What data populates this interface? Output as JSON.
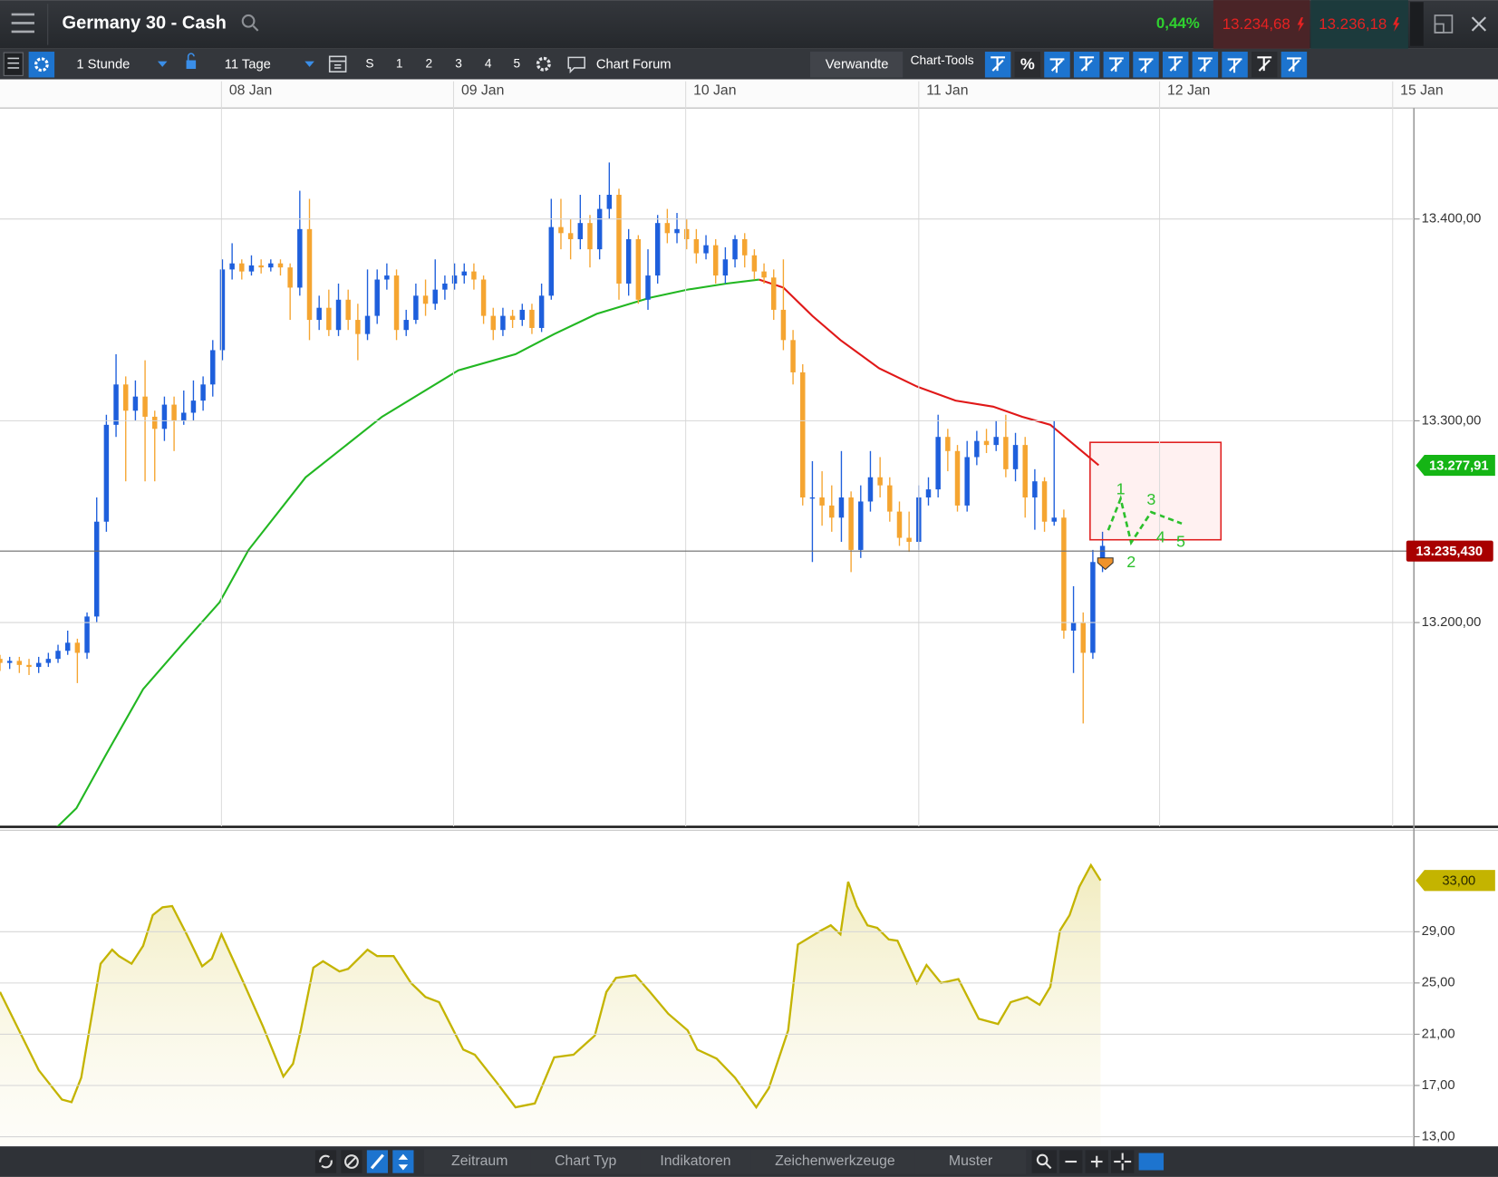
{
  "header": {
    "title": "Germany 30 - Cash",
    "change": "0,44%",
    "bid": "13.234,68",
    "ask": "13.236,18"
  },
  "toolbar": {
    "interval": "1 Stunde",
    "range": "11 Tage",
    "buttons": [
      "S",
      "1",
      "2",
      "3",
      "4",
      "5"
    ],
    "forum": "Chart Forum",
    "related": "Verwandte",
    "tools": "Chart-Tools",
    "percent": "%"
  },
  "bottom_tabs": [
    "Zeitraum",
    "Chart Typ",
    "Indikatoren",
    "Zeichenwerkzeuge",
    "Muster"
  ],
  "chart_data": [
    {
      "type": "candlestick",
      "x": [
        0,
        1,
        2,
        3,
        4,
        5,
        6,
        7,
        8,
        9,
        10,
        11,
        12,
        13,
        14,
        15,
        16,
        17,
        18,
        19,
        20,
        21,
        22,
        23,
        24,
        25,
        26,
        27,
        28,
        29,
        30,
        31,
        32,
        33,
        34,
        35,
        36,
        37,
        38,
        39,
        40,
        41,
        42,
        43,
        44,
        45,
        46,
        47,
        48,
        49,
        50,
        51,
        52,
        53,
        54,
        55,
        56,
        57,
        58,
        59,
        60,
        61,
        62,
        63,
        64,
        65,
        66,
        67,
        68,
        69,
        70,
        71,
        72,
        73,
        74,
        75,
        76,
        77,
        78,
        79,
        80,
        81,
        82,
        83,
        84,
        85,
        86,
        87,
        88,
        89,
        90,
        91,
        92,
        93,
        94,
        95,
        96,
        97,
        98,
        99,
        100,
        101,
        102,
        103,
        104,
        105,
        106,
        107,
        108,
        109,
        110,
        111,
        112,
        113,
        114
      ],
      "open": [
        13182,
        13180,
        13181,
        13179,
        13178,
        13180,
        13182,
        13186,
        13190,
        13185,
        13203,
        13250,
        13298,
        13318,
        13305,
        13312,
        13302,
        13296,
        13308,
        13300,
        13304,
        13310,
        13318,
        13335,
        13375,
        13378,
        13374,
        13377,
        13376,
        13378,
        13376,
        13366,
        13395,
        13350,
        13356,
        13345,
        13360,
        13350,
        13343,
        13352,
        13370,
        13372,
        13345,
        13350,
        13362,
        13358,
        13365,
        13368,
        13372,
        13374,
        13370,
        13352,
        13345,
        13352,
        13350,
        13355,
        13346,
        13362,
        13396,
        13393,
        13390,
        13398,
        13385,
        13405,
        13412,
        13368,
        13390,
        13360,
        13372,
        13398,
        13393,
        13395,
        13390,
        13383,
        13387,
        13372,
        13380,
        13390,
        13382,
        13374,
        13371,
        13355,
        13340,
        13324,
        13262,
        13262,
        13258,
        13252,
        13262,
        13236,
        13260,
        13272,
        13268,
        13255,
        13242,
        13240,
        13262,
        13266,
        13292,
        13285,
        13258,
        13282,
        13290,
        13288,
        13292,
        13276,
        13288,
        13262,
        13270,
        13250,
        13252,
        13196,
        13200,
        13185,
        13230
      ],
      "high": [
        13184,
        13183,
        13183,
        13182,
        13183,
        13185,
        13189,
        13196,
        13192,
        13205,
        13262,
        13303,
        13333,
        13322,
        13320,
        13330,
        13305,
        13312,
        13312,
        13315,
        13320,
        13322,
        13340,
        13380,
        13388,
        13380,
        13382,
        13380,
        13380,
        13380,
        13378,
        13414,
        13410,
        13362,
        13365,
        13368,
        13365,
        13358,
        13375,
        13375,
        13378,
        13375,
        13355,
        13368,
        13370,
        13380,
        13372,
        13378,
        13378,
        13378,
        13372,
        13356,
        13356,
        13355,
        13358,
        13358,
        13368,
        13410,
        13410,
        13400,
        13412,
        13402,
        13412,
        13428,
        13415,
        13395,
        13392,
        13385,
        13402,
        13405,
        13403,
        13400,
        13395,
        13392,
        13390,
        13386,
        13392,
        13393,
        13385,
        13378,
        13375,
        13380,
        13345,
        13328,
        13280,
        13275,
        13268,
        13285,
        13265,
        13268,
        13285,
        13282,
        13272,
        13260,
        13255,
        13268,
        13272,
        13303,
        13296,
        13288,
        13290,
        13295,
        13296,
        13300,
        13303,
        13294,
        13292,
        13276,
        13272,
        13300,
        13256,
        13218,
        13205,
        13236,
        13245
      ],
      "low": [
        13176,
        13177,
        13175,
        13174,
        13175,
        13178,
        13180,
        13184,
        13170,
        13182,
        13200,
        13245,
        13292,
        13270,
        13300,
        13270,
        13270,
        13290,
        13285,
        13298,
        13300,
        13305,
        13312,
        13330,
        13370,
        13370,
        13372,
        13373,
        13374,
        13372,
        13350,
        13362,
        13340,
        13345,
        13342,
        13342,
        13345,
        13330,
        13340,
        13348,
        13365,
        13340,
        13342,
        13348,
        13352,
        13355,
        13360,
        13365,
        13368,
        13365,
        13348,
        13340,
        13342,
        13346,
        13347,
        13343,
        13344,
        13360,
        13385,
        13380,
        13385,
        13376,
        13380,
        13400,
        13360,
        13362,
        13358,
        13355,
        13368,
        13388,
        13388,
        13385,
        13378,
        13380,
        13368,
        13368,
        13376,
        13376,
        13370,
        13368,
        13350,
        13335,
        13318,
        13258,
        13230,
        13248,
        13245,
        13240,
        13225,
        13232,
        13255,
        13262,
        13250,
        13238,
        13235,
        13236,
        13258,
        13262,
        13275,
        13255,
        13255,
        13278,
        13284,
        13285,
        13272,
        13270,
        13252,
        13246,
        13245,
        13248,
        13192,
        13175,
        13150,
        13182,
        13225
      ],
      "close": [
        13180,
        13181,
        13179,
        13178,
        13180,
        13182,
        13186,
        13190,
        13185,
        13203,
        13250,
        13298,
        13318,
        13305,
        13312,
        13302,
        13296,
        13308,
        13300,
        13304,
        13310,
        13318,
        13335,
        13375,
        13378,
        13374,
        13377,
        13376,
        13378,
        13376,
        13366,
        13395,
        13350,
        13356,
        13345,
        13360,
        13350,
        13343,
        13352,
        13370,
        13372,
        13345,
        13350,
        13362,
        13358,
        13365,
        13368,
        13372,
        13374,
        13370,
        13352,
        13345,
        13352,
        13350,
        13355,
        13346,
        13362,
        13396,
        13393,
        13390,
        13398,
        13385,
        13405,
        13412,
        13368,
        13390,
        13360,
        13372,
        13398,
        13393,
        13395,
        13390,
        13383,
        13387,
        13372,
        13380,
        13390,
        13382,
        13374,
        13371,
        13355,
        13340,
        13324,
        13262,
        13262,
        13258,
        13252,
        13262,
        13236,
        13260,
        13272,
        13268,
        13255,
        13242,
        13240,
        13262,
        13266,
        13292,
        13285,
        13258,
        13282,
        13290,
        13288,
        13292,
        13276,
        13288,
        13262,
        13270,
        13250,
        13252,
        13196,
        13200,
        13185,
        13230,
        13238
      ],
      "up_color": "#1e5fdc",
      "down_color": "#f5a531",
      "xlim": [
        0,
        146.2
      ],
      "xticks": [
        {
          "value": 22.9,
          "label": "08 Jan"
        },
        {
          "value": 46.9,
          "label": "09 Jan"
        },
        {
          "value": 70.9,
          "label": "10 Jan"
        },
        {
          "value": 95,
          "label": "11 Jan"
        },
        {
          "value": 119.9,
          "label": "12 Jan"
        },
        {
          "value": 144,
          "label": "15 Jan"
        }
      ],
      "ylim": [
        13099,
        13455
      ],
      "yticks": [
        {
          "value": 13400,
          "label": "13.400,00"
        },
        {
          "value": 13300,
          "label": "13.300,00"
        },
        {
          "value": 13200,
          "label": "13.200,00"
        }
      ],
      "grid": true,
      "overlays": [
        {
          "x": [
            5.9,
            7.9,
            10.9,
            14.8,
            18.8,
            22.7,
            25.7,
            31.6,
            39.5,
            47.4,
            53.3,
            57.3,
            61.7,
            67.2,
            71.1,
            75.1,
            78.5
          ],
          "values": [
            13098.6,
            13108,
            13134,
            13167,
            13189,
            13210,
            13236,
            13272,
            13302,
            13325,
            13333,
            13343,
            13353,
            13361,
            13365,
            13368,
            13370
          ],
          "color": "#22b722"
        },
        {
          "x": [
            78.5,
            81,
            84,
            86.9,
            90.9,
            94.8,
            98.8,
            102.7,
            105.7,
            108.6,
            111.6,
            113.6
          ],
          "values": [
            13370,
            13366,
            13352,
            13340,
            13326,
            13317,
            13310,
            13307,
            13302,
            13298,
            13286,
            13278
          ],
          "color": "#e01818"
        }
      ],
      "price_lines": [
        {
          "value": 13235.43,
          "label": "13.235,430",
          "color": "#a80000"
        }
      ],
      "markers": [
        {
          "value": 13277.91,
          "label": "13.277,91",
          "color": "#15b515"
        }
      ],
      "annotations": [
        "1",
        "2",
        "3",
        "4",
        "5"
      ]
    },
    {
      "type": "area",
      "x": [
        0,
        4,
        6.4,
        7.4,
        8.4,
        10.4,
        11.6,
        12.3,
        13.6,
        14.8,
        15.8,
        16.8,
        17.8,
        19.3,
        20.9,
        21.9,
        22.9,
        25.2,
        27.2,
        29.3,
        30.3,
        31.1,
        32.4,
        33.4,
        35.1,
        36,
        38,
        39,
        40.7,
        42.5,
        44,
        45.4,
        47.9,
        49.1,
        51.4,
        53.3,
        55.3,
        57.3,
        59.3,
        61.5,
        62.7,
        63.7,
        65.7,
        67.2,
        69.1,
        71.1,
        72.1,
        74.1,
        76,
        78.2,
        79.5,
        81.5,
        82.5,
        84.9,
        85.9,
        86.9,
        87.7,
        88.6,
        89.7,
        90.7,
        91.9,
        92.8,
        94.8,
        95.8,
        97.3,
        99.1,
        101.2,
        103.2,
        104.5,
        106.2,
        107.5,
        108.6,
        109.6,
        110.6,
        111.6,
        112.8,
        113.8
      ],
      "values": [
        24.3,
        18.2,
        15.9,
        15.7,
        17.6,
        26.5,
        27.6,
        27.1,
        26.5,
        27.9,
        30.3,
        30.9,
        31,
        28.8,
        26.3,
        26.9,
        28.8,
        25,
        21.6,
        17.7,
        18.7,
        21.3,
        26.2,
        26.7,
        25.9,
        26.1,
        27.6,
        27.1,
        27.1,
        25,
        23.9,
        23.5,
        19.8,
        19.4,
        17.2,
        15.3,
        15.6,
        19.2,
        19.4,
        20.9,
        24.3,
        25.4,
        25.6,
        24.3,
        22.6,
        21.3,
        19.8,
        19.1,
        17.6,
        15.3,
        16.8,
        21.3,
        28,
        29.1,
        29.5,
        28.8,
        32.9,
        31,
        29.5,
        29.3,
        28.4,
        28.3,
        25,
        26.4,
        25,
        25.3,
        22.2,
        21.8,
        23.5,
        23.9,
        23.3,
        24.7,
        29.1,
        30.3,
        32.5,
        34.2,
        33
      ],
      "color": "#c4b400",
      "xlim": [
        0,
        146.2
      ],
      "ylim": [
        12.25,
        37
      ],
      "yticks": [
        {
          "value": 29,
          "label": "29,00"
        },
        {
          "value": 25,
          "label": "25,00"
        },
        {
          "value": 21,
          "label": "21,00"
        },
        {
          "value": 17,
          "label": "17,00"
        },
        {
          "value": 13,
          "label": "13,00"
        }
      ],
      "grid": true,
      "markers": [
        {
          "value": 33,
          "label": "33,00",
          "color": "#c4b400"
        }
      ]
    }
  ]
}
